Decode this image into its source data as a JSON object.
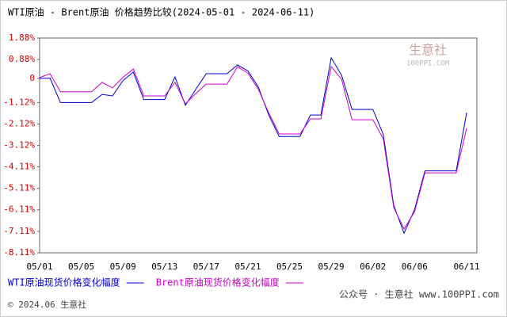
{
  "chart_data": {
    "type": "line",
    "title": "WTI原油 - Brent原油 价格趋势比较(2024-05-01 - 2024-06-11)",
    "watermark": "生意社",
    "watermark_sub": "100PPI.COM",
    "footer": "© 2024.06 生意社",
    "footer_right": "公众号 · 生意社 www.100PPI.com",
    "categories": [
      "05/01",
      null,
      null,
      null,
      "05/05",
      null,
      null,
      null,
      "05/09",
      null,
      null,
      null,
      "05/13",
      null,
      null,
      null,
      "05/17",
      null,
      null,
      null,
      "05/21",
      null,
      null,
      null,
      "05/25",
      null,
      null,
      null,
      "05/29",
      null,
      null,
      null,
      "06/02",
      null,
      null,
      null,
      "06/06",
      null,
      null,
      null,
      null,
      "06/11"
    ],
    "series": [
      {
        "name": "WTI原油现货价格变化幅度",
        "color": "#0000cc",
        "values": [
          0.0,
          0.02,
          -1.12,
          -1.12,
          -1.12,
          -1.12,
          -0.74,
          -0.81,
          -0.1,
          0.3,
          -0.98,
          -0.98,
          -0.98,
          0.07,
          -1.25,
          -0.5,
          0.22,
          0.22,
          0.22,
          0.63,
          0.35,
          -0.4,
          -1.7,
          -2.7,
          -2.7,
          -2.7,
          -1.7,
          -1.7,
          0.96,
          0.15,
          -1.44,
          -1.44,
          -1.44,
          -2.6,
          -5.9,
          -7.2,
          -6.1,
          -4.3,
          -4.3,
          -4.3,
          -4.3,
          -1.59
        ]
      },
      {
        "name": "Brent原油现货价格变化幅度",
        "color": "#cc00cc",
        "values": [
          0.04,
          0.22,
          -0.62,
          -0.62,
          -0.62,
          -0.62,
          -0.18,
          -0.44,
          0.05,
          0.44,
          -0.81,
          -0.81,
          -0.81,
          -0.18,
          -1.18,
          -0.7,
          -0.26,
          -0.26,
          -0.26,
          0.55,
          0.25,
          -0.5,
          -1.6,
          -2.58,
          -2.58,
          -2.58,
          -1.88,
          -1.88,
          0.55,
          -0.04,
          -1.92,
          -1.92,
          -1.92,
          -2.8,
          -6.0,
          -7.0,
          -6.2,
          -4.39,
          -4.39,
          -4.39,
          -4.39,
          -2.32
        ]
      }
    ],
    "ylim": [
      -8.11,
      1.88
    ],
    "yticks": [
      {
        "value": 1.88,
        "label": "1.88%"
      },
      {
        "value": 0.88,
        "label": "0.88%"
      },
      0,
      {
        "value": -1.12,
        "label": "-1.12%"
      },
      {
        "value": -2.12,
        "label": "-2.12%"
      },
      {
        "value": -3.12,
        "label": "-3.12%"
      },
      {
        "value": -4.11,
        "label": "-4.11%"
      },
      {
        "value": -5.11,
        "label": "-5.11%"
      },
      {
        "value": -6.11,
        "label": "-6.11%"
      },
      {
        "value": -7.11,
        "label": "-7.11%"
      },
      {
        "value": -8.11,
        "label": "-8.11%"
      }
    ],
    "grid": false
  }
}
